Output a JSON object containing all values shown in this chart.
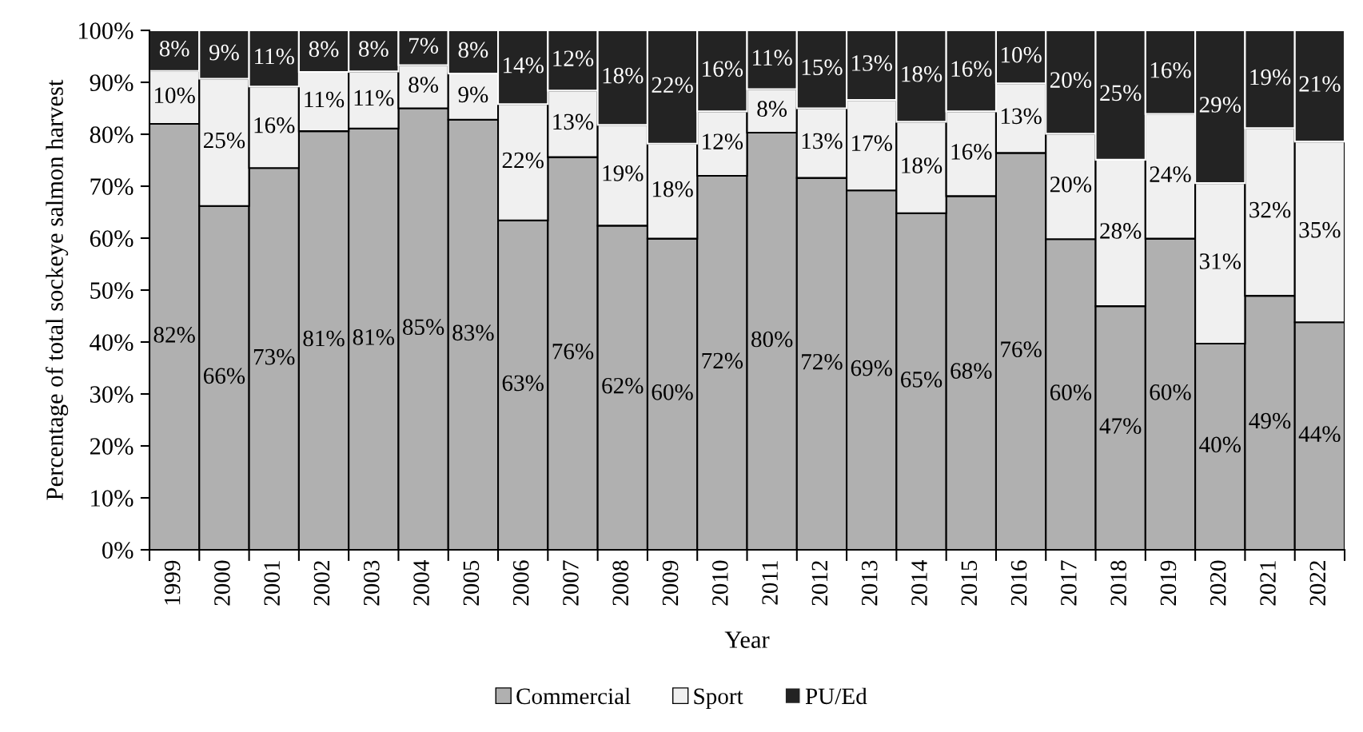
{
  "chart_data": {
    "type": "bar",
    "stacked": true,
    "xlabel": "Year",
    "ylabel": "Percentage of total sockeye salmon harvest",
    "categories": [
      "1999",
      "2000",
      "2001",
      "2002",
      "2003",
      "2004",
      "2005",
      "2006",
      "2007",
      "2008",
      "2009",
      "2010",
      "2011",
      "2012",
      "2013",
      "2014",
      "2015",
      "2016",
      "2017",
      "2018",
      "2019",
      "2020",
      "2021",
      "2022"
    ],
    "series": [
      {
        "name": "Commercial",
        "color": "#b0b0b0",
        "values": [
          82.0,
          66.2,
          73.5,
          80.6,
          81.1,
          85.0,
          82.8,
          63.4,
          75.6,
          62.4,
          59.9,
          72.0,
          80.3,
          71.6,
          69.2,
          64.8,
          68.1,
          76.4,
          59.8,
          46.9,
          59.9,
          39.7,
          48.9,
          43.8
        ],
        "value_labels": [
          "82%",
          "66%",
          "73%",
          "81%",
          "81%",
          "85%",
          "83%",
          "63%",
          "76%",
          "62%",
          "60%",
          "72%",
          "80%",
          "72%",
          "69%",
          "65%",
          "68%",
          "76%",
          "60%",
          "47%",
          "60%",
          "40%",
          "49%",
          "44%"
        ]
      },
      {
        "name": "Sport",
        "color": "#f0f0f0",
        "values": [
          10.2,
          24.5,
          15.7,
          11.4,
          11.0,
          8.3,
          8.9,
          22.4,
          12.8,
          19.4,
          18.3,
          12.4,
          8.4,
          13.4,
          17.4,
          17.6,
          16.3,
          13.4,
          20.3,
          28.2,
          24.0,
          30.9,
          32.3,
          34.8
        ],
        "value_labels": [
          "10%",
          "25%",
          "16%",
          "11%",
          "11%",
          "8%",
          "9%",
          "22%",
          "13%",
          "19%",
          "18%",
          "12%",
          "8%",
          "13%",
          "17%",
          "18%",
          "16%",
          "13%",
          "20%",
          "28%",
          "24%",
          "31%",
          "32%",
          "35%"
        ]
      },
      {
        "name": "PU/Ed",
        "color": "#232323",
        "values": [
          7.8,
          9.3,
          10.8,
          8.0,
          7.9,
          6.7,
          8.3,
          14.2,
          11.6,
          18.2,
          21.8,
          15.6,
          11.3,
          15.0,
          13.4,
          17.6,
          15.6,
          10.2,
          19.9,
          24.9,
          16.1,
          29.4,
          18.8,
          21.4
        ],
        "value_labels": [
          "8%",
          "9%",
          "11%",
          "8%",
          "8%",
          "7%",
          "8%",
          "14%",
          "12%",
          "18%",
          "22%",
          "16%",
          "11%",
          "15%",
          "13%",
          "18%",
          "16%",
          "10%",
          "20%",
          "25%",
          "16%",
          "29%",
          "19%",
          "21%"
        ]
      }
    ],
    "ylim": [
      0,
      100
    ],
    "yticks": [
      {
        "value": 0,
        "label": "0%"
      },
      {
        "value": 10,
        "label": "10%"
      },
      {
        "value": 20,
        "label": "20%"
      },
      {
        "value": 30,
        "label": "30%"
      },
      {
        "value": 40,
        "label": "40%"
      },
      {
        "value": 50,
        "label": "50%"
      },
      {
        "value": 60,
        "label": "60%"
      },
      {
        "value": 70,
        "label": "70%"
      },
      {
        "value": 80,
        "label": "80%"
      },
      {
        "value": 90,
        "label": "90%"
      },
      {
        "value": 100,
        "label": "100%"
      }
    ],
    "grid": false,
    "legend": "bottom"
  }
}
